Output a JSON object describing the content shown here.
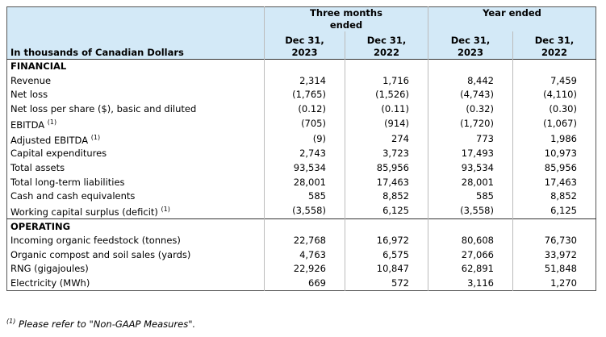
{
  "header": {
    "unit_label": "In thousands of Canadian Dollars",
    "groups": [
      "Three months ended",
      "Year ended"
    ],
    "columns": [
      "Dec 31, 2023",
      "Dec 31, 2022",
      "Dec 31, 2023",
      "Dec 31, 2022"
    ]
  },
  "sections": [
    {
      "title": "FINANCIAL",
      "rows": [
        {
          "label": "Revenue",
          "values": [
            "2,314",
            "1,716",
            "8,442",
            "7,459"
          ]
        },
        {
          "label": "Net loss",
          "values": [
            "(1,765)",
            "(1,526)",
            "(4,743)",
            "(4,110)"
          ]
        },
        {
          "label": "Net loss per share ($), basic and diluted",
          "values": [
            "(0.12)",
            "(0.11)",
            "(0.32)",
            "(0.30)"
          ]
        },
        {
          "label": "EBITDA",
          "note": "(1)",
          "values": [
            "(705)",
            "(914)",
            "(1,720)",
            "(1,067)"
          ]
        },
        {
          "label": "Adjusted EBITDA",
          "note": "(1)",
          "values": [
            "(9)",
            "274",
            "773",
            "1,986"
          ]
        },
        {
          "label": "Capital expenditures",
          "values": [
            "2,743",
            "3,723",
            "17,493",
            "10,973"
          ]
        },
        {
          "label": "Total assets",
          "values": [
            "93,534",
            "85,956",
            "93,534",
            "85,956"
          ]
        },
        {
          "label": "Total long-term liabilities",
          "values": [
            "28,001",
            "17,463",
            "28,001",
            "17,463"
          ]
        },
        {
          "label": "Cash and cash equivalents",
          "values": [
            "585",
            "8,852",
            "585",
            "8,852"
          ]
        },
        {
          "label": "Working capital surplus (deficit)",
          "note": "(1)",
          "values": [
            "(3,558)",
            "6,125",
            "(3,558)",
            "6,125"
          ]
        }
      ]
    },
    {
      "title": "OPERATING",
      "rows": [
        {
          "label": "Incoming organic feedstock (tonnes)",
          "values": [
            "22,768",
            "16,972",
            "80,608",
            "76,730"
          ]
        },
        {
          "label": "Organic compost and soil sales (yards)",
          "values": [
            "4,763",
            "6,575",
            "27,066",
            "33,972"
          ]
        },
        {
          "label": "RNG (gigajoules)",
          "values": [
            "22,926",
            "10,847",
            "62,891",
            "51,848"
          ]
        },
        {
          "label": "Electricity (MWh)",
          "values": [
            "669",
            "572",
            "3,116",
            "1,270"
          ]
        }
      ]
    }
  ],
  "footnote": {
    "marker": "(1)",
    "text": "Please refer to \"Non-GAAP Measures\"."
  }
}
